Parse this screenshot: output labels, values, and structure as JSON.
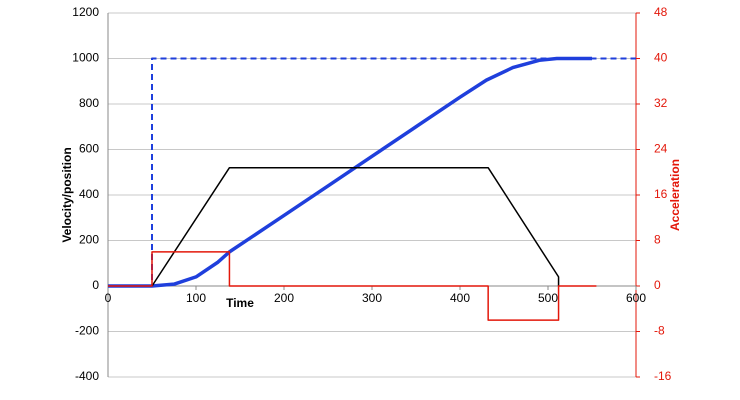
{
  "chart_data": {
    "type": "line",
    "x_label": "Time",
    "y_label": "Velocity/position",
    "y2_label": "Acceleration",
    "xlim": [
      0,
      600
    ],
    "xticks": [
      0,
      100,
      200,
      300,
      400,
      500,
      600
    ],
    "ylim": [
      -400,
      1200
    ],
    "yticks": [
      -400,
      -200,
      0,
      200,
      400,
      600,
      800,
      1000,
      1200
    ],
    "y2lim": [
      -16,
      48
    ],
    "y2ticks": [
      -16,
      -8,
      0,
      8,
      16,
      24,
      32,
      40,
      48
    ],
    "grid": true,
    "y2_color": "#e3170a",
    "series": [
      {
        "color": "#1f3fdc",
        "style": "dashed",
        "width": 2,
        "x": [
          0,
          50,
          50,
          600
        ],
        "values": [
          0,
          0,
          1000,
          1000
        ]
      },
      {
        "color": "#1f3fdc",
        "style": "solid",
        "width": 3.5,
        "x": [
          0,
          50,
          75,
          100,
          125,
          138,
          200,
          250,
          300,
          350,
          400,
          430,
          460,
          490,
          510,
          550
        ],
        "values": [
          0,
          0,
          8,
          40,
          105,
          150,
          310,
          440,
          570,
          700,
          830,
          905,
          960,
          992,
          1000,
          1000
        ]
      },
      {
        "color": "#000000",
        "style": "solid",
        "width": 1.5,
        "x": [
          50,
          138,
          432,
          512,
          512
        ],
        "values": [
          0,
          520,
          520,
          40,
          0
        ]
      },
      {
        "color": "#e3170a",
        "style": "solid",
        "width": 1.5,
        "axis": "y2",
        "x": [
          0,
          50,
          50,
          138,
          138,
          432,
          432,
          512,
          512,
          555
        ],
        "values": [
          0,
          0,
          6,
          6,
          0,
          0,
          -6,
          -6,
          0,
          0
        ]
      }
    ]
  }
}
